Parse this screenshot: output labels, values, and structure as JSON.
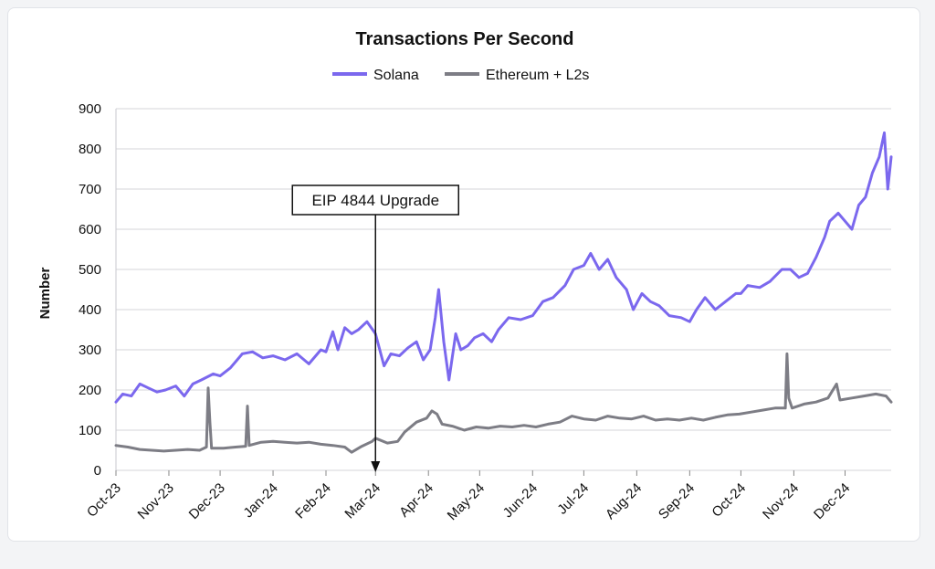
{
  "chart_data": {
    "type": "line",
    "title": "Transactions Per Second",
    "xlabel": "",
    "ylabel": "Number",
    "ylim": [
      0,
      900
    ],
    "yticks": [
      0,
      100,
      200,
      300,
      400,
      500,
      600,
      700,
      800,
      900
    ],
    "x_tick_labels": [
      "Oct-23",
      "Nov-23",
      "Dec-23",
      "Jan-24",
      "Feb-24",
      "Mar-24",
      "Apr-24",
      "May-24",
      "Jun-24",
      "Jul-24",
      "Aug-24",
      "Sep-24",
      "Oct-24",
      "Nov-24",
      "Dec-24"
    ],
    "x_tick_dates": [
      "2023-10-01",
      "2023-11-01",
      "2023-12-01",
      "2024-01-01",
      "2024-02-01",
      "2024-03-01",
      "2024-04-01",
      "2024-05-01",
      "2024-06-01",
      "2024-07-01",
      "2024-08-01",
      "2024-09-01",
      "2024-10-01",
      "2024-11-01",
      "2024-12-01"
    ],
    "x_range": [
      "2023-10-01",
      "2024-12-28"
    ],
    "grid": true,
    "legend_position": "top-center",
    "annotation": {
      "text": "EIP 4844 Upgrade",
      "date": "2024-03-01"
    },
    "series": [
      {
        "name": "Solana",
        "color": "#7b68ee",
        "points": [
          [
            "2023-10-01",
            170
          ],
          [
            "2023-10-05",
            190
          ],
          [
            "2023-10-10",
            185
          ],
          [
            "2023-10-15",
            215
          ],
          [
            "2023-10-20",
            205
          ],
          [
            "2023-10-25",
            195
          ],
          [
            "2023-10-30",
            200
          ],
          [
            "2023-11-05",
            210
          ],
          [
            "2023-11-10",
            185
          ],
          [
            "2023-11-15",
            215
          ],
          [
            "2023-11-20",
            225
          ],
          [
            "2023-11-27",
            240
          ],
          [
            "2023-12-01",
            235
          ],
          [
            "2023-12-07",
            255
          ],
          [
            "2023-12-14",
            290
          ],
          [
            "2023-12-20",
            295
          ],
          [
            "2023-12-26",
            280
          ],
          [
            "2024-01-01",
            285
          ],
          [
            "2024-01-08",
            275
          ],
          [
            "2024-01-15",
            290
          ],
          [
            "2024-01-22",
            265
          ],
          [
            "2024-01-29",
            300
          ],
          [
            "2024-02-01",
            295
          ],
          [
            "2024-02-05",
            345
          ],
          [
            "2024-02-08",
            300
          ],
          [
            "2024-02-12",
            355
          ],
          [
            "2024-02-16",
            340
          ],
          [
            "2024-02-20",
            350
          ],
          [
            "2024-02-25",
            370
          ],
          [
            "2024-03-01",
            340
          ],
          [
            "2024-03-06",
            260
          ],
          [
            "2024-03-10",
            290
          ],
          [
            "2024-03-15",
            285
          ],
          [
            "2024-03-20",
            305
          ],
          [
            "2024-03-25",
            320
          ],
          [
            "2024-03-29",
            275
          ],
          [
            "2024-04-02",
            300
          ],
          [
            "2024-04-05",
            380
          ],
          [
            "2024-04-07",
            450
          ],
          [
            "2024-04-10",
            320
          ],
          [
            "2024-04-13",
            225
          ],
          [
            "2024-04-17",
            340
          ],
          [
            "2024-04-20",
            300
          ],
          [
            "2024-04-24",
            310
          ],
          [
            "2024-04-28",
            330
          ],
          [
            "2024-05-03",
            340
          ],
          [
            "2024-05-08",
            320
          ],
          [
            "2024-05-12",
            350
          ],
          [
            "2024-05-18",
            380
          ],
          [
            "2024-05-25",
            375
          ],
          [
            "2024-06-01",
            385
          ],
          [
            "2024-06-07",
            420
          ],
          [
            "2024-06-13",
            430
          ],
          [
            "2024-06-20",
            460
          ],
          [
            "2024-06-25",
            500
          ],
          [
            "2024-07-01",
            510
          ],
          [
            "2024-07-05",
            540
          ],
          [
            "2024-07-10",
            500
          ],
          [
            "2024-07-15",
            525
          ],
          [
            "2024-07-20",
            480
          ],
          [
            "2024-07-26",
            450
          ],
          [
            "2024-07-30",
            400
          ],
          [
            "2024-08-04",
            440
          ],
          [
            "2024-08-09",
            420
          ],
          [
            "2024-08-14",
            410
          ],
          [
            "2024-08-20",
            385
          ],
          [
            "2024-08-27",
            380
          ],
          [
            "2024-09-01",
            370
          ],
          [
            "2024-09-05",
            400
          ],
          [
            "2024-09-10",
            430
          ],
          [
            "2024-09-16",
            400
          ],
          [
            "2024-09-22",
            420
          ],
          [
            "2024-09-28",
            440
          ],
          [
            "2024-10-01",
            440
          ],
          [
            "2024-10-05",
            460
          ],
          [
            "2024-10-12",
            455
          ],
          [
            "2024-10-18",
            470
          ],
          [
            "2024-10-25",
            500
          ],
          [
            "2024-10-30",
            500
          ],
          [
            "2024-11-04",
            480
          ],
          [
            "2024-11-09",
            490
          ],
          [
            "2024-11-14",
            530
          ],
          [
            "2024-11-19",
            580
          ],
          [
            "2024-11-22",
            620
          ],
          [
            "2024-11-27",
            640
          ],
          [
            "2024-12-01",
            620
          ],
          [
            "2024-12-05",
            600
          ],
          [
            "2024-12-09",
            660
          ],
          [
            "2024-12-13",
            680
          ],
          [
            "2024-12-17",
            740
          ],
          [
            "2024-12-21",
            780
          ],
          [
            "2024-12-24",
            840
          ],
          [
            "2024-12-26",
            700
          ],
          [
            "2024-12-28",
            780
          ]
        ]
      },
      {
        "name": "Ethereum + L2s",
        "color": "#7d7d85",
        "points": [
          [
            "2023-10-01",
            62
          ],
          [
            "2023-10-08",
            58
          ],
          [
            "2023-10-15",
            52
          ],
          [
            "2023-10-22",
            50
          ],
          [
            "2023-10-29",
            48
          ],
          [
            "2023-11-05",
            50
          ],
          [
            "2023-11-12",
            52
          ],
          [
            "2023-11-19",
            50
          ],
          [
            "2023-11-23",
            58
          ],
          [
            "2023-11-24",
            205
          ],
          [
            "2023-11-25",
            120
          ],
          [
            "2023-11-26",
            55
          ],
          [
            "2023-12-03",
            55
          ],
          [
            "2023-12-10",
            58
          ],
          [
            "2023-12-16",
            60
          ],
          [
            "2023-12-17",
            160
          ],
          [
            "2023-12-18",
            62
          ],
          [
            "2023-12-25",
            70
          ],
          [
            "2024-01-01",
            72
          ],
          [
            "2024-01-08",
            70
          ],
          [
            "2024-01-15",
            68
          ],
          [
            "2024-01-22",
            70
          ],
          [
            "2024-01-29",
            65
          ],
          [
            "2024-02-05",
            62
          ],
          [
            "2024-02-12",
            58
          ],
          [
            "2024-02-16",
            45
          ],
          [
            "2024-02-22",
            60
          ],
          [
            "2024-02-28",
            72
          ],
          [
            "2024-03-01",
            80
          ],
          [
            "2024-03-08",
            68
          ],
          [
            "2024-03-14",
            72
          ],
          [
            "2024-03-18",
            95
          ],
          [
            "2024-03-25",
            120
          ],
          [
            "2024-03-31",
            130
          ],
          [
            "2024-04-03",
            148
          ],
          [
            "2024-04-06",
            140
          ],
          [
            "2024-04-09",
            115
          ],
          [
            "2024-04-15",
            110
          ],
          [
            "2024-04-22",
            100
          ],
          [
            "2024-04-29",
            108
          ],
          [
            "2024-05-06",
            105
          ],
          [
            "2024-05-13",
            110
          ],
          [
            "2024-05-20",
            108
          ],
          [
            "2024-05-27",
            112
          ],
          [
            "2024-06-03",
            108
          ],
          [
            "2024-06-10",
            115
          ],
          [
            "2024-06-17",
            120
          ],
          [
            "2024-06-24",
            135
          ],
          [
            "2024-07-01",
            128
          ],
          [
            "2024-07-08",
            125
          ],
          [
            "2024-07-15",
            135
          ],
          [
            "2024-07-22",
            130
          ],
          [
            "2024-07-29",
            128
          ],
          [
            "2024-08-05",
            135
          ],
          [
            "2024-08-12",
            125
          ],
          [
            "2024-08-19",
            128
          ],
          [
            "2024-08-26",
            125
          ],
          [
            "2024-09-02",
            130
          ],
          [
            "2024-09-09",
            125
          ],
          [
            "2024-09-16",
            132
          ],
          [
            "2024-09-23",
            138
          ],
          [
            "2024-09-30",
            140
          ],
          [
            "2024-10-07",
            145
          ],
          [
            "2024-10-14",
            150
          ],
          [
            "2024-10-21",
            155
          ],
          [
            "2024-10-27",
            155
          ],
          [
            "2024-10-28",
            290
          ],
          [
            "2024-10-29",
            180
          ],
          [
            "2024-10-31",
            155
          ],
          [
            "2024-11-07",
            165
          ],
          [
            "2024-11-14",
            170
          ],
          [
            "2024-11-21",
            180
          ],
          [
            "2024-11-26",
            215
          ],
          [
            "2024-11-28",
            175
          ],
          [
            "2024-12-05",
            180
          ],
          [
            "2024-12-12",
            185
          ],
          [
            "2024-12-19",
            190
          ],
          [
            "2024-12-25",
            185
          ],
          [
            "2024-12-28",
            170
          ]
        ]
      }
    ]
  }
}
